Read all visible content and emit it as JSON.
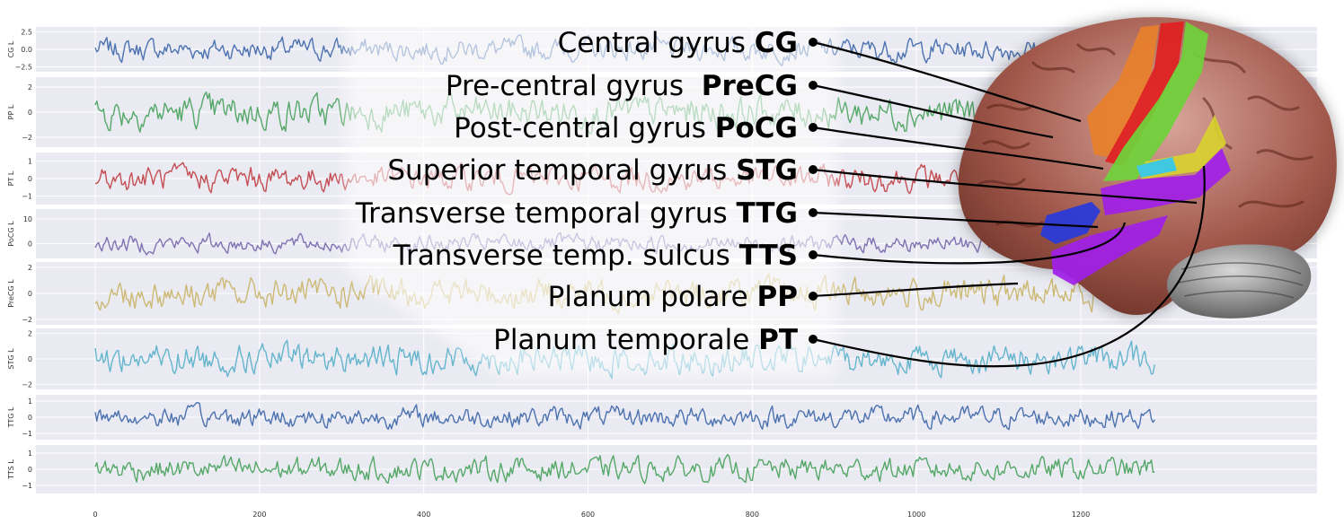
{
  "chart_data": {
    "type": "line",
    "x": {
      "min": 0,
      "max": 1290
    },
    "xticks": [
      0,
      200,
      400,
      600,
      800,
      1000,
      1200
    ],
    "series": [
      {
        "name": "CG L",
        "color": "#4c72b0",
        "ylim": [
          -3.2,
          3.2
        ],
        "yticks": [
          "2.5",
          "0.0",
          "−2.5"
        ],
        "ytick_values": [
          2.5,
          0,
          -2.5
        ],
        "amplitude": 1.1
      },
      {
        "name": "PP L",
        "color": "#55a868",
        "ylim": [
          -2.8,
          2.8
        ],
        "yticks": [
          "2",
          "0",
          "−2"
        ],
        "ytick_values": [
          2,
          0,
          -2
        ],
        "amplitude": 0.9
      },
      {
        "name": "PT L",
        "color": "#c44e52",
        "ylim": [
          -1.5,
          1.5
        ],
        "yticks": [
          "1",
          "0",
          "−1"
        ],
        "ytick_values": [
          1,
          0,
          -1
        ],
        "amplitude": 0.5
      },
      {
        "name": "PoCG L",
        "color": "#8172b2",
        "ylim": [
          -6,
          14
        ],
        "yticks": [
          "10",
          "0"
        ],
        "ytick_values": [
          10,
          0
        ],
        "amplitude": 2.5
      },
      {
        "name": "PreCG L",
        "color": "#ccb974",
        "ylim": [
          -2.4,
          2.4
        ],
        "yticks": [
          "2",
          "0",
          "−2"
        ],
        "ytick_values": [
          2,
          0,
          -2
        ],
        "amplitude": 0.8
      },
      {
        "name": "STG L",
        "color": "#64b5cd",
        "ylim": [
          -2.4,
          2.4
        ],
        "yticks": [
          "2",
          "0",
          "−2"
        ],
        "ytick_values": [
          2,
          0,
          -2
        ],
        "amplitude": 0.8
      },
      {
        "name": "TTG L",
        "color": "#4c72b0",
        "ylim": [
          -1.4,
          1.4
        ],
        "yticks": [
          "1",
          "0",
          "−1"
        ],
        "ytick_values": [
          1,
          0,
          -1
        ],
        "amplitude": 0.45
      },
      {
        "name": "TTS L",
        "color": "#55a868",
        "ylim": [
          -1.5,
          1.5
        ],
        "yticks": [
          "1",
          "0",
          "−1"
        ],
        "ytick_values": [
          1,
          0,
          -1
        ],
        "amplitude": 0.5
      }
    ]
  },
  "labels": [
    {
      "name": "Central gyrus ",
      "abbr": "CG"
    },
    {
      "name": "Pre-central gyrus  ",
      "abbr": "PreCG"
    },
    {
      "name": "Post-central gyrus ",
      "abbr": "PoCG"
    },
    {
      "name": "Superior temporal gyrus ",
      "abbr": "STG"
    },
    {
      "name": "Transverse temporal gyrus ",
      "abbr": "TTG"
    },
    {
      "name": "Transverse temp. sulcus ",
      "abbr": "TTS"
    },
    {
      "name": "Planum polare ",
      "abbr": "PP"
    },
    {
      "name": "Planum temporale ",
      "abbr": "PT"
    }
  ],
  "colors": {
    "plot_bg": "#eaeaf2",
    "grid": "#ffffff",
    "brain": "#8a4a3e",
    "cerebellum": "#7a7a7a",
    "regions": {
      "CG": "#e8802a",
      "PreCG": "#e02020",
      "PoCG": "#6ed23a",
      "STG": "#a020e8",
      "TTG": "#2a3ad8",
      "TTS": "#d8d030",
      "PT": "#a020e8",
      "PP": "#a020e8"
    }
  }
}
